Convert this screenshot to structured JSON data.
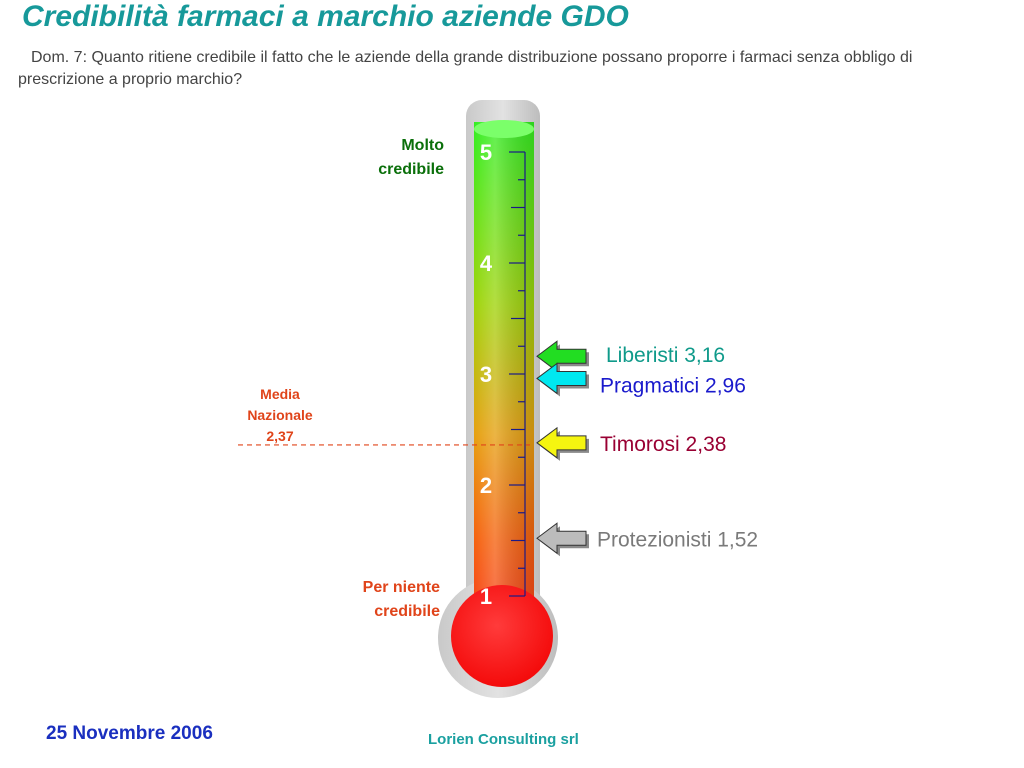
{
  "title": "Credibilità farmaci a marchio aziende GDO",
  "question": "Dom. 7: Quanto ritiene credibile il fatto che le aziende della grande distribuzione possano proporre i farmaci senza obbligo di prescrizione a proprio marchio?",
  "footer": {
    "date": "25 Novembre 2006",
    "company": "Lorien Consulting srl"
  },
  "colors": {
    "title": "#17999a",
    "top_label": "#0a6f0a",
    "bottom_label": "#e0441a",
    "media": "#e0441a"
  },
  "chart_data": {
    "type": "thermometer",
    "scale": {
      "min": 1,
      "max": 5,
      "ticks": [
        "1",
        "2",
        "3",
        "4",
        "5"
      ]
    },
    "top_label": [
      "Molto",
      "credibile"
    ],
    "bottom_label": [
      "Per niente",
      "credibile"
    ],
    "reference": {
      "label": [
        "Media",
        "Nazionale",
        "2,37"
      ],
      "value": 2.37,
      "color": "#e0441a"
    },
    "markers": [
      {
        "label": "Liberisti 3,16",
        "value": 3.16,
        "arrow_color": "#22dd22",
        "text_color": "#0f9a8a"
      },
      {
        "label": "Pragmatici 2,96",
        "value": 2.96,
        "arrow_color": "#00e8f0",
        "text_color": "#1a1acc"
      },
      {
        "label": "Timorosi 2,38",
        "value": 2.38,
        "arrow_color": "#f5f510",
        "text_color": "#990033"
      },
      {
        "label": "Protezionisti 1,52",
        "value": 1.52,
        "arrow_color": "#bcbcbc",
        "text_color": "#7a7a7a"
      }
    ]
  }
}
